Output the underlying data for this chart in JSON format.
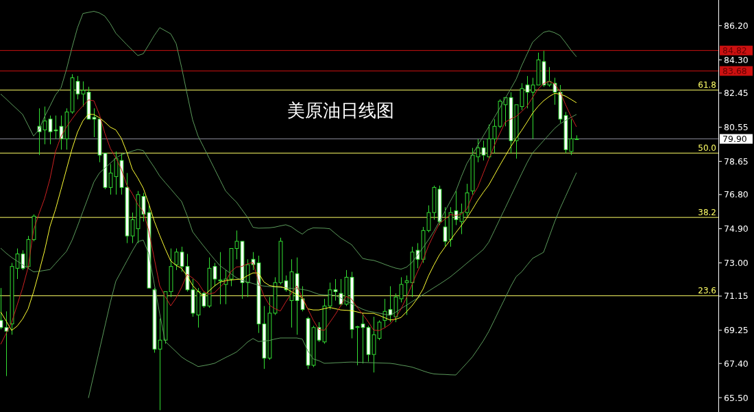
{
  "chart_data": {
    "type": "candlestick",
    "title": "美原油日线图",
    "categories": [
      null,
      null,
      null,
      null,
      null,
      null,
      null,
      null,
      null,
      null,
      null,
      null,
      null,
      null,
      null,
      null,
      null,
      null,
      null,
      null,
      null,
      null,
      null,
      null,
      null,
      null,
      null,
      null,
      null,
      null,
      null,
      null,
      null,
      null,
      null,
      null,
      null,
      null,
      null,
      null,
      null,
      null,
      null,
      null,
      null,
      null,
      null,
      null,
      null,
      null,
      null,
      null,
      null,
      null,
      null,
      null,
      null,
      null,
      null,
      null,
      null,
      null,
      null,
      null,
      null,
      null,
      null,
      null,
      null,
      null,
      null,
      null,
      null,
      null,
      null,
      null,
      null,
      null,
      null,
      null,
      null,
      null,
      null,
      null,
      null,
      null,
      null,
      null,
      null,
      null,
      null,
      null,
      null,
      null,
      null,
      null,
      null,
      null,
      null,
      null,
      null,
      null,
      null,
      null,
      null,
      null
    ],
    "ylim": [
      64.7,
      87.63
    ],
    "yticks": [
      {
        "value": 86.2,
        "label": "86.20"
      },
      {
        "value": 84.3,
        "label": "84.30"
      },
      {
        "value": 82.45,
        "label": "82.45"
      },
      {
        "value": 80.55,
        "label": "80.55"
      },
      {
        "value": 78.65,
        "label": "78.65"
      },
      {
        "value": 76.8,
        "label": "76.80"
      },
      {
        "value": 74.9,
        "label": "74.90"
      },
      {
        "value": 73.0,
        "label": "73.00"
      },
      {
        "value": 71.15,
        "label": "71.15"
      },
      {
        "value": 69.25,
        "label": "69.25"
      },
      {
        "value": 67.4,
        "label": "67.40"
      },
      {
        "value": 65.5,
        "label": "65.50"
      }
    ],
    "tick_labels": "y",
    "grid": false,
    "series": [
      {
        "type": "line",
        "color": "#5b9a5b",
        "values": [
          82.4,
          82.12,
          81.83,
          81.55,
          81.26,
          80.66,
          80.06,
          80.42,
          81.14,
          81.73,
          82.35,
          82.74,
          83.77,
          84.97,
          86.08,
          86.88,
          86.94,
          87.0,
          86.91,
          86.73,
          86.31,
          85.78,
          85.46,
          85.14,
          84.84,
          84.54,
          84.64,
          85.14,
          85.65,
          86.09,
          85.92,
          85.75,
          85.2,
          83.86,
          82.39,
          80.96,
          80.05,
          79.45,
          78.84,
          78.23,
          77.62,
          77.01,
          76.68,
          76.38,
          75.96,
          75.54,
          74.98,
          74.93,
          74.94,
          74.95,
          74.99,
          75.06,
          75.12,
          75.01,
          74.79,
          74.6,
          74.84,
          74.95,
          74.94,
          74.93,
          74.9,
          74.64,
          74.39,
          74.2,
          74.01,
          73.63,
          73.25,
          73.18,
          73.14,
          73.04,
          72.92,
          72.81,
          72.71,
          72.65,
          72.76,
          73.02,
          73.43,
          73.84,
          74.28,
          74.76,
          75.31,
          75.86,
          76.43,
          76.99,
          77.79,
          78.52,
          79.03,
          79.54,
          80.06,
          80.57,
          81.08,
          81.61,
          82.15,
          82.68,
          83.22,
          83.97,
          84.63,
          85.28,
          85.57,
          85.83,
          85.91,
          85.81,
          85.65,
          85.26,
          84.84,
          84.47
        ]
      },
      {
        "type": "line",
        "color": "#5b9a5b",
        "values": [
          73.82,
          73.54,
          73.3,
          73.1,
          72.9,
          72.7,
          72.5,
          72.53,
          72.58,
          72.63,
          72.97,
          73.31,
          73.64,
          74.25,
          75.04,
          75.86,
          76.68,
          77.5,
          78.0,
          78.28,
          78.55,
          78.83,
          79.02,
          79.12,
          79.22,
          79.31,
          79.25,
          78.77,
          78.32,
          77.83,
          77.47,
          77.12,
          76.76,
          76.41,
          75.63,
          74.73,
          74.33,
          73.94,
          73.56,
          73.19,
          72.84,
          72.62,
          72.39,
          72.17,
          72.03,
          71.94,
          71.85,
          71.76,
          71.71,
          71.68,
          71.66,
          71.63,
          71.61,
          71.58,
          71.55,
          71.52,
          71.47,
          71.36,
          71.25,
          71.22,
          71.22,
          71.19,
          71.04,
          70.88,
          70.73,
          70.57,
          70.42,
          70.31,
          70.26,
          70.2,
          70.14,
          70.08,
          70.25,
          70.45,
          70.64,
          70.84,
          71.03,
          71.23,
          71.42,
          71.62,
          71.81,
          72.01,
          72.22,
          72.47,
          72.72,
          72.98,
          73.23,
          73.48,
          73.74,
          74.15,
          74.78,
          75.42,
          76.05,
          76.69,
          77.33,
          77.96,
          78.58,
          79.12,
          79.46,
          79.8,
          80.14,
          80.48,
          80.74,
          80.92,
          81.1,
          81.26
        ]
      },
      {
        "type": "line",
        "color": "#5b9a5b",
        "values": [
          null,
          null,
          null,
          null,
          null,
          null,
          null,
          null,
          null,
          null,
          null,
          null,
          null,
          null,
          null,
          null,
          65.48,
          66.81,
          68.14,
          69.47,
          70.8,
          71.98,
          72.54,
          73.1,
          73.66,
          74.18,
          74.27,
          73.51,
          71.84,
          70.16,
          68.63,
          68.34,
          68.05,
          67.76,
          67.56,
          67.4,
          67.23,
          67.28,
          67.34,
          67.41,
          67.57,
          67.73,
          67.88,
          68.04,
          68.3,
          68.59,
          68.79,
          68.62,
          68.65,
          68.68,
          68.76,
          68.82,
          68.82,
          68.82,
          68.82,
          68.76,
          68.11,
          67.65,
          67.56,
          67.41,
          67.42,
          67.44,
          67.45,
          67.47,
          67.48,
          67.47,
          67.46,
          67.45,
          67.44,
          67.43,
          67.42,
          67.41,
          67.37,
          67.31,
          67.26,
          67.2,
          67.1,
          66.99,
          66.89,
          66.82,
          66.8,
          66.79,
          66.77,
          66.76,
          67.09,
          67.42,
          67.76,
          68.2,
          68.66,
          69.18,
          69.8,
          70.43,
          71.05,
          71.68,
          72.23,
          72.5,
          72.88,
          73.25,
          73.42,
          73.59,
          74.43,
          75.27,
          76.02,
          76.69,
          77.36,
          78.02
        ]
      },
      {
        "type": "line",
        "color": "#ffff33",
        "values": [
          70.27,
          69.76,
          69.24,
          69.48,
          69.88,
          70.44,
          71.39,
          72.5,
          73.67,
          75.04,
          75.98,
          77.09,
          78.21,
          79.33,
          80.27,
          80.91,
          81.27,
          81.26,
          81.08,
          80.83,
          80.55,
          80.4,
          79.93,
          79.16,
          78.21,
          77.72,
          77.16,
          76.3,
          75.33,
          74.53,
          73.79,
          73.11,
          72.86,
          72.69,
          72.27,
          71.75,
          71.41,
          71.15,
          71.44,
          71.72,
          71.93,
          72.01,
          72.05,
          72.08,
          72.1,
          72.29,
          72.44,
          72.44,
          71.94,
          71.74,
          71.68,
          71.68,
          71.59,
          71.4,
          71.24,
          71.05,
          70.44,
          70.38,
          70.38,
          70.45,
          70.52,
          70.45,
          70.38,
          70.36,
          70.34,
          70.27,
          70.2,
          70.19,
          70.19,
          70.08,
          69.95,
          69.82,
          69.86,
          69.96,
          70.28,
          70.61,
          71.02,
          71.53,
          72.27,
          72.88,
          73.44,
          73.87,
          74.27,
          74.68,
          75.08,
          75.49,
          75.97,
          76.48,
          76.92,
          77.33,
          77.87,
          78.42,
          78.94,
          79.46,
          79.93,
          80.37,
          80.84,
          81.33,
          81.71,
          82.02,
          82.25,
          82.43,
          82.39,
          82.28,
          82.1,
          81.91
        ]
      },
      {
        "type": "line",
        "color": "#cc2222",
        "values": [
          68.47,
          69.08,
          69.69,
          70.65,
          71.6,
          72.75,
          74.83,
          75.74,
          76.58,
          77.69,
          79.2,
          80.03,
          80.56,
          81.0,
          81.41,
          81.74,
          82.07,
          82.02,
          81.26,
          80.21,
          79.37,
          78.84,
          78.21,
          77.33,
          76.85,
          76.25,
          75.86,
          74.78,
          73.25,
          71.72,
          71.12,
          70.61,
          71.05,
          71.65,
          72.37,
          72.16,
          71.89,
          71.41,
          71.26,
          71.34,
          71.65,
          71.96,
          72.52,
          72.77,
          72.8,
          72.95,
          73.02,
          71.98,
          71.17,
          70.65,
          70.45,
          70.32,
          70.83,
          71.29,
          71.72,
          71.08,
          70.44,
          69.81,
          69.3,
          69.24,
          69.68,
          70.12,
          70.61,
          71.14,
          70.98,
          70.53,
          70.15,
          69.73,
          69.26,
          69.23,
          69.38,
          69.59,
          69.94,
          70.43,
          71.07,
          71.79,
          72.5,
          73.15,
          73.94,
          74.59,
          75.18,
          75.43,
          75.69,
          75.64,
          75.72,
          75.99,
          76.71,
          77.21,
          77.99,
          78.77,
          79.51,
          80.19,
          80.84,
          81.0,
          81.15,
          81.42,
          81.73,
          82.21,
          82.67,
          82.98,
          83.1,
          82.97,
          82.54,
          81.81,
          81.15,
          80.57
        ]
      },
      {
        "type": "candlestick",
        "color": "#33e033",
        "ohlc": [
          [
            69.8,
            71.6,
            69.3,
            69.4
          ],
          [
            69.4,
            70.3,
            66.7,
            69.2
          ],
          [
            69.6,
            73.0,
            69.0,
            72.8
          ],
          [
            72.7,
            73.8,
            72.1,
            73.5
          ],
          [
            73.5,
            73.7,
            72.6,
            72.7
          ],
          [
            72.8,
            74.5,
            72.7,
            74.3
          ],
          [
            74.3,
            75.7,
            74.2,
            75.6
          ],
          [
            80.6,
            81.6,
            79.0,
            80.3
          ],
          [
            80.4,
            81.7,
            79.6,
            80.9
          ],
          [
            81.0,
            81.2,
            79.6,
            80.3
          ],
          [
            80.4,
            81.2,
            79.9,
            80.35
          ],
          [
            80.6,
            81.2,
            79.3,
            79.9
          ],
          [
            79.9,
            81.6,
            79.3,
            81.4
          ],
          [
            81.4,
            83.5,
            81.3,
            83.3
          ],
          [
            83.1,
            83.4,
            82.1,
            82.4
          ],
          [
            82.4,
            83.1,
            81.7,
            82.6
          ],
          [
            82.5,
            82.8,
            81.0,
            81.0
          ],
          [
            81.1,
            81.6,
            80.0,
            81.0
          ],
          [
            81.0,
            81.0,
            78.6,
            79.0
          ],
          [
            79.1,
            79.1,
            77.1,
            77.2
          ],
          [
            77.2,
            78.5,
            76.8,
            78.0
          ],
          [
            77.8,
            79.2,
            76.8,
            78.8
          ],
          [
            78.7,
            79.1,
            76.8,
            77.2
          ],
          [
            77.2,
            78.0,
            74.1,
            74.5
          ],
          [
            74.5,
            75.8,
            74.1,
            75.4
          ],
          [
            74.9,
            77.0,
            74.1,
            76.8
          ],
          [
            76.7,
            76.9,
            75.3,
            75.7
          ],
          [
            75.8,
            76.2,
            71.6,
            71.6
          ],
          [
            71.5,
            71.6,
            68.0,
            68.2
          ],
          [
            68.2,
            69.9,
            64.8,
            68.7
          ],
          [
            68.7,
            71.4,
            68.5,
            71.4
          ],
          [
            71.4,
            73.8,
            71.1,
            72.8
          ],
          [
            72.9,
            73.8,
            72.6,
            73.6
          ],
          [
            73.6,
            73.9,
            72.5,
            72.8
          ],
          [
            72.8,
            73.5,
            71.4,
            71.5
          ],
          [
            71.5,
            72.1,
            70.0,
            70.2
          ],
          [
            70.1,
            71.6,
            69.4,
            71.4
          ],
          [
            71.3,
            71.4,
            70.5,
            70.6
          ],
          [
            70.6,
            73.3,
            70.5,
            72.7
          ],
          [
            72.8,
            73.0,
            71.7,
            72.1
          ],
          [
            72.0,
            73.6,
            70.7,
            72.05
          ],
          [
            71.8,
            72.6,
            70.7,
            72.1
          ],
          [
            72.1,
            73.8,
            71.7,
            73.8
          ],
          [
            73.8,
            74.8,
            73.2,
            74.2
          ],
          [
            74.2,
            74.2,
            71.0,
            71.9
          ],
          [
            71.9,
            73.2,
            71.1,
            72.9
          ],
          [
            73.2,
            73.6,
            72.6,
            72.9
          ],
          [
            73.0,
            73.4,
            69.1,
            69.6
          ],
          [
            69.6,
            70.6,
            67.1,
            67.7
          ],
          [
            67.7,
            71.1,
            67.6,
            70.2
          ],
          [
            70.2,
            72.2,
            70.1,
            71.9
          ],
          [
            71.9,
            74.4,
            71.8,
            74.2
          ],
          [
            72.0,
            72.3,
            71.4,
            71.5
          ],
          [
            70.9,
            73.2,
            69.4,
            72.5
          ],
          [
            72.4,
            73.3,
            69.0,
            70.9
          ],
          [
            71.0,
            71.7,
            70.3,
            70.4
          ],
          [
            69.9,
            70.0,
            67.1,
            67.3
          ],
          [
            67.3,
            69.5,
            67.2,
            69.4
          ],
          [
            69.4,
            69.7,
            68.6,
            68.7
          ],
          [
            68.6,
            71.0,
            68.5,
            70.6
          ],
          [
            70.6,
            71.9,
            70.4,
            71.5
          ],
          [
            71.5,
            72.1,
            70.9,
            71.4
          ],
          [
            71.3,
            72.1,
            70.6,
            70.7
          ],
          [
            70.7,
            72.6,
            70.6,
            72.2
          ],
          [
            72.2,
            72.5,
            68.8,
            69.3
          ],
          [
            69.4,
            69.5,
            67.3,
            69.45
          ],
          [
            69.6,
            70.2,
            67.4,
            69.4
          ],
          [
            69.4,
            69.5,
            67.5,
            67.9
          ],
          [
            67.9,
            70.0,
            66.9,
            69.0
          ],
          [
            68.8,
            69.8,
            68.7,
            69.7
          ],
          [
            69.8,
            71.0,
            69.4,
            70.3
          ],
          [
            70.4,
            71.7,
            69.7,
            70.1
          ],
          [
            70.0,
            71.3,
            69.7,
            71.1
          ],
          [
            71.0,
            72.2,
            70.8,
            71.8
          ],
          [
            71.9,
            72.3,
            70.1,
            72.0
          ],
          [
            71.9,
            73.9,
            71.1,
            73.6
          ],
          [
            73.7,
            74.1,
            72.7,
            73.2
          ],
          [
            73.2,
            75.0,
            73.0,
            74.8
          ],
          [
            74.8,
            76.2,
            74.7,
            75.8
          ],
          [
            75.8,
            77.3,
            75.4,
            77.2
          ],
          [
            77.1,
            77.3,
            75.1,
            75.3
          ],
          [
            75.0,
            76.1,
            73.9,
            74.2
          ],
          [
            74.3,
            76.1,
            73.9,
            75.8
          ],
          [
            75.9,
            77.0,
            75.1,
            75.4
          ],
          [
            75.3,
            76.3,
            74.6,
            75.8
          ],
          [
            75.8,
            77.4,
            75.6,
            76.9
          ],
          [
            77.0,
            79.4,
            76.8,
            79.0
          ],
          [
            78.9,
            79.9,
            78.6,
            79.4
          ],
          [
            79.4,
            79.8,
            78.7,
            79.0
          ],
          [
            78.9,
            80.7,
            78.8,
            79.9
          ],
          [
            79.9,
            81.0,
            79.1,
            80.6
          ],
          [
            80.6,
            82.1,
            80.5,
            82.0
          ],
          [
            81.8,
            82.2,
            80.6,
            82.2
          ],
          [
            82.2,
            82.5,
            79.1,
            79.8
          ],
          [
            79.8,
            81.8,
            78.8,
            81.8
          ],
          [
            81.7,
            83.0,
            81.5,
            82.7
          ],
          [
            82.9,
            83.4,
            81.6,
            82.5
          ],
          [
            82.5,
            83.3,
            79.9,
            82.9
          ],
          [
            82.9,
            84.7,
            82.9,
            84.3
          ],
          [
            84.2,
            84.8,
            82.8,
            82.9
          ],
          [
            82.9,
            83.9,
            82.8,
            83.1
          ],
          [
            83.0,
            83.3,
            81.8,
            82.5
          ],
          [
            82.5,
            82.9,
            80.8,
            81.0
          ],
          [
            81.2,
            81.4,
            79.1,
            79.3
          ],
          [
            79.2,
            81.0,
            79.0,
            79.9
          ],
          [
            79.9,
            80.1,
            79.85,
            79.9
          ]
        ]
      }
    ],
    "ref_lines": [
      {
        "axis": "y",
        "value": 84.82,
        "label": "84.82",
        "color": "#cc1111"
      },
      {
        "axis": "y",
        "value": 83.68,
        "label": "83.68",
        "color": "#cc1111"
      },
      {
        "axis": "y",
        "value": 82.62,
        "color": "#ffff66"
      },
      {
        "axis": "y",
        "value": 79.9,
        "label": "79.90",
        "color": "#8a8a9a"
      },
      {
        "axis": "y",
        "value": 79.11,
        "color": "#ffff66"
      },
      {
        "axis": "y",
        "value": 75.53,
        "color": "#ffff66"
      },
      {
        "axis": "y",
        "value": 71.17,
        "color": "#ffff66"
      }
    ],
    "annotations": [
      {
        "text": "61.8",
        "y": 82.62
      },
      {
        "text": "50.0",
        "y": 79.11
      },
      {
        "text": "38.2",
        "y": 75.53
      },
      {
        "text": "23.6",
        "y": 71.17
      }
    ]
  }
}
